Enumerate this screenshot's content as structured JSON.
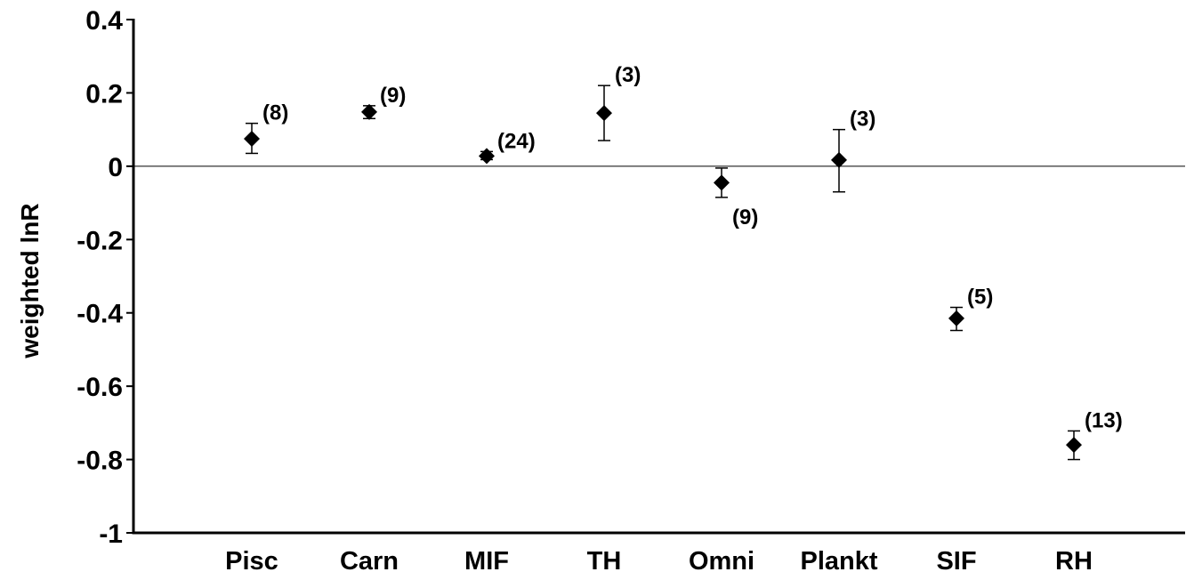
{
  "chart_data": {
    "type": "scatter",
    "title": "",
    "xlabel": "",
    "ylabel": "weighted lnR",
    "ylim": [
      -1,
      0.4
    ],
    "yticks": [
      0.4,
      0.2,
      0,
      -0.2,
      -0.4,
      -0.6,
      -0.8,
      -1
    ],
    "ytick_labels": [
      "0.4",
      "0.2",
      "0",
      "-0.2",
      "-0.4",
      "-0.6",
      "-0.8",
      "-1"
    ],
    "zero_line": true,
    "grid": false,
    "categories": [
      "Pisc",
      "Carn",
      "MIF",
      "TH",
      "Omni",
      "Plankt",
      "SIF",
      "RH"
    ],
    "values": [
      0.075,
      0.148,
      0.028,
      0.145,
      -0.045,
      0.017,
      -0.415,
      -0.76
    ],
    "error_low": [
      0.035,
      0.13,
      0.018,
      0.07,
      -0.085,
      -0.07,
      -0.448,
      -0.8
    ],
    "error_high": [
      0.117,
      0.165,
      0.04,
      0.22,
      -0.005,
      0.1,
      -0.385,
      -0.722
    ],
    "sample_sizes": [
      "(8)",
      "(9)",
      "(24)",
      "(3)",
      "(9)",
      "(3)",
      "(5)",
      "(13)"
    ],
    "sample_size_label_position": [
      "above",
      "above",
      "above",
      "above",
      "below",
      "above",
      "above",
      "above"
    ]
  }
}
